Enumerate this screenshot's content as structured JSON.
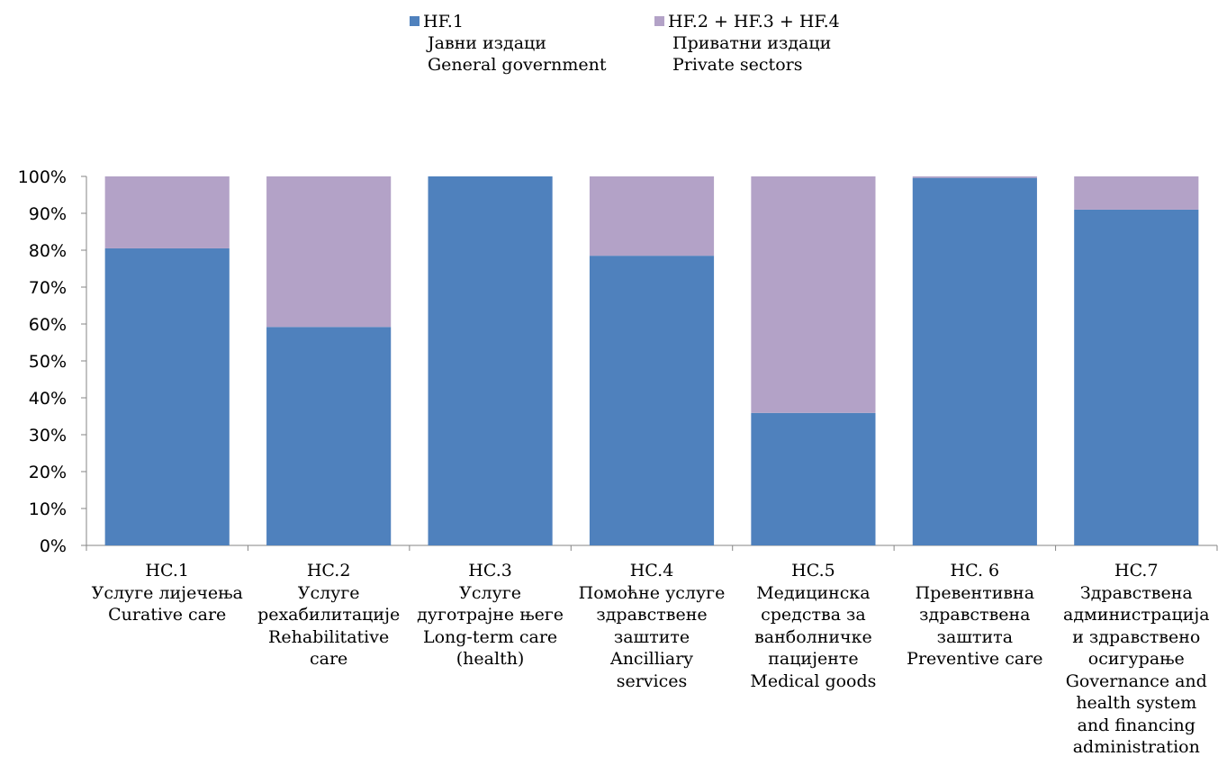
{
  "colors": {
    "public": "#4f81bd",
    "private": "#b3a2c7",
    "axis": "#868686"
  },
  "legend": [
    {
      "name": "HF.1",
      "lines": [
        "Јавни издаци",
        "General government"
      ],
      "color": "#4f81bd"
    },
    {
      "name": "HF.2 + HF.3 + HF.4",
      "lines": [
        "Приватни издаци",
        "Private sectors"
      ],
      "color": "#b3a2c7"
    }
  ],
  "chart_data": {
    "type": "bar",
    "stacked": "percent",
    "ylim": [
      0,
      100
    ],
    "yticks": [
      "0%",
      "10%",
      "20%",
      "30%",
      "40%",
      "50%",
      "60%",
      "70%",
      "80%",
      "90%",
      "100%"
    ],
    "categories": [
      [
        "HC.1",
        "Услуге лијечења",
        "Curative care"
      ],
      [
        "HC.2",
        "Услуге",
        "рехабилитације",
        "Rehabilitative",
        "care"
      ],
      [
        "HC.3",
        "Услуге",
        "дуготрајне његе",
        "Long-term care",
        "(health)"
      ],
      [
        "HC.4",
        "Помоћне услуге",
        "здравствене",
        "заштите",
        "Ancilliary",
        "services"
      ],
      [
        "HC.5",
        "Медицинска",
        "средства за",
        "ванболничке",
        "пацијенте",
        "Medical goods"
      ],
      [
        "HC. 6",
        "Превентивна",
        "здравствена",
        "заштита",
        "Preventive care"
      ],
      [
        "HC.7",
        "Здравствена",
        "администрација",
        "и здравствено",
        "осигурање",
        "Governance and",
        "health system",
        "and financing",
        "administration"
      ]
    ],
    "series": [
      {
        "name": "HF.1",
        "values": [
          80.5,
          59.2,
          100,
          78.5,
          35.9,
          99.6,
          91.0
        ]
      },
      {
        "name": "HF.2 + HF.3 + HF.4",
        "values": [
          19.5,
          40.8,
          0,
          21.5,
          64.1,
          0.4,
          9.0
        ]
      }
    ],
    "grid": false,
    "legend_position": "top"
  }
}
